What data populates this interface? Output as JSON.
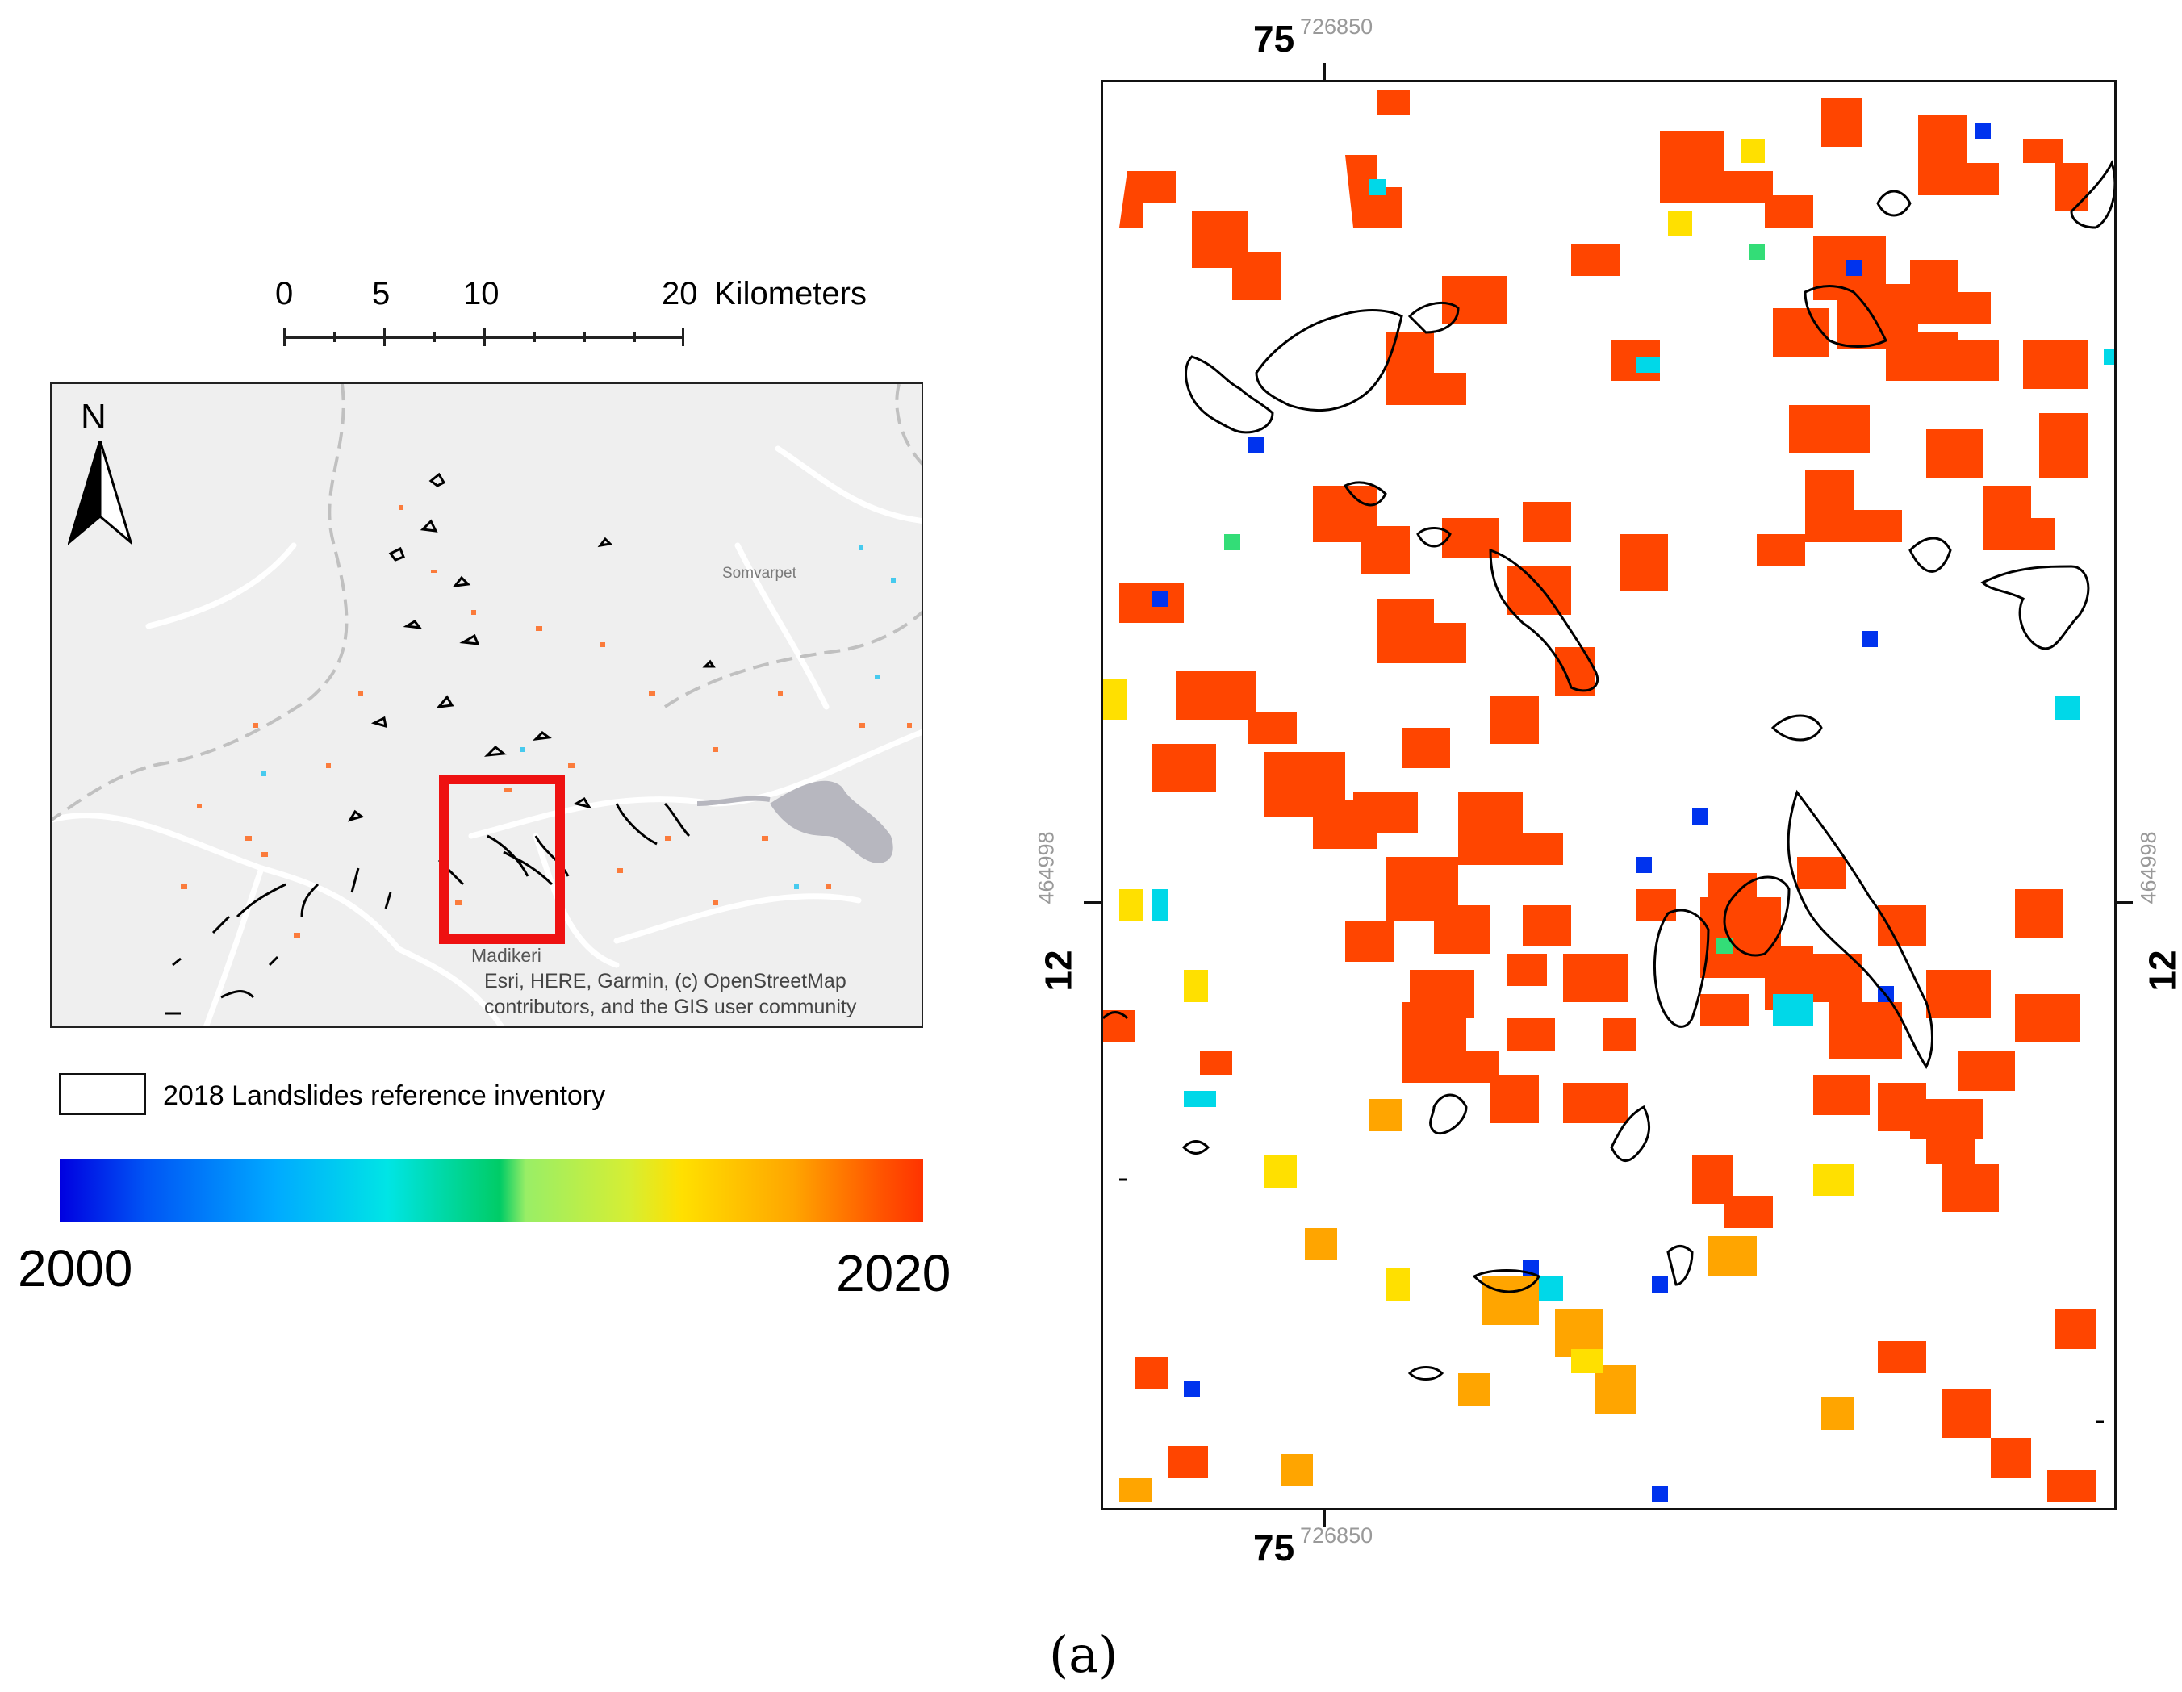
{
  "scale_bar": {
    "ticks": [
      "0",
      "5",
      "10",
      "20"
    ],
    "unit": "Kilometers"
  },
  "overview": {
    "north": "N",
    "towns": {
      "somvarpet": "Somvarpet",
      "madikeri": "Madikeri"
    },
    "attribution": [
      "Esri, HERE, Garmin, (c) OpenStreetMap",
      "contributors, and the GIS user community"
    ],
    "colors": {
      "background": "#efefef",
      "roads": "#ffffff",
      "boundary": "#bdbdbd",
      "reservoir": "#b7b7bf",
      "extent_box": "#ee1111"
    }
  },
  "legend": {
    "inventory_label": "2018 Landslides reference inventory",
    "colorbar_min": "2000",
    "colorbar_max": "2020",
    "colors": [
      "#0000e0",
      "#00aaff",
      "#00e5e5",
      "#00cc66",
      "#d6ee33",
      "#ffe000",
      "#ffa500",
      "#ff3300"
    ]
  },
  "detail": {
    "top_label": {
      "deg": "75",
      "min": "726850"
    },
    "bottom_label": {
      "deg": "75",
      "min": "726850"
    },
    "left_label": {
      "deg": "12",
      "min": "464998"
    },
    "right_label": {
      "deg": "12",
      "min": "464998"
    },
    "colors": {
      "dominant": "#ff4500",
      "outline": "#000000"
    }
  },
  "caption": "(a)"
}
